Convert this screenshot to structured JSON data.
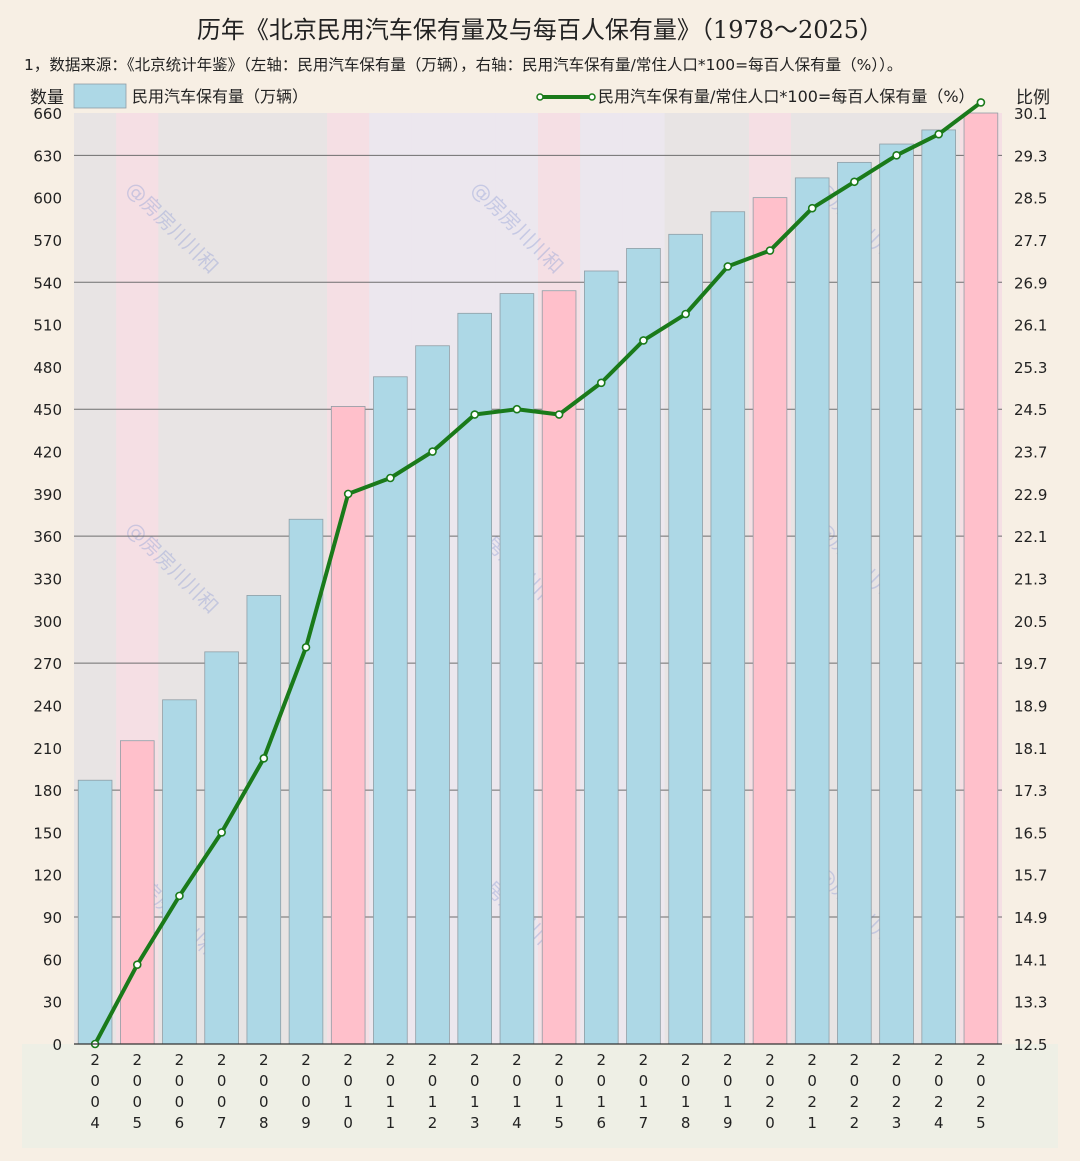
{
  "title": "历年《北京民用汽车保有量及与每百人保有量》（1978～2025）",
  "subtitle": "1，数据来源：《北京统计年鉴》（左轴：民用汽车保有量（万辆），右轴：民用汽车保有量/常住人口*100=每百人保有量（%））。",
  "watermark": "@房房川川和",
  "colors": {
    "bar_blue": "#add8e6",
    "bar_pink": "#ffc0cb",
    "line": "#1a7a1a",
    "band_pink": "#f7dde3",
    "band_grey": "#e8e3e3",
    "band_lavender": "#ece6ee"
  },
  "chart_data": {
    "type": "bar",
    "categories": [
      "2004",
      "2005",
      "2006",
      "2007",
      "2008",
      "2009",
      "2010",
      "2011",
      "2012",
      "2013",
      "2014",
      "2015",
      "2016",
      "2017",
      "2018",
      "2019",
      "2020",
      "2021",
      "2022",
      "2023",
      "2024",
      "2025"
    ],
    "y_left_label": "数量",
    "y_right_label": "比例",
    "y_left_ticks": [
      "0",
      "30",
      "60",
      "90",
      "120",
      "150",
      "180",
      "210",
      "240",
      "270",
      "300",
      "330",
      "360",
      "390",
      "420",
      "450",
      "480",
      "510",
      "540",
      "570",
      "600",
      "630",
      "660"
    ],
    "y_right_ticks": [
      "12.5",
      "13.3",
      "14.1",
      "14.9",
      "15.7",
      "16.5",
      "17.3",
      "18.1",
      "18.9",
      "19.7",
      "20.5",
      "21.3",
      "22.1",
      "22.9",
      "23.7",
      "24.5",
      "25.3",
      "26.1",
      "26.9",
      "27.7",
      "28.5",
      "29.3",
      "30.1"
    ],
    "ylim_left": [
      0,
      660
    ],
    "ylim_right": [
      12.5,
      30.1
    ],
    "series": [
      {
        "name": "民用汽车保有量（万辆）",
        "type": "bar",
        "axis": "left",
        "values": [
          187,
          215,
          244,
          278,
          318,
          372,
          452,
          473,
          495,
          518,
          532,
          534,
          548,
          564,
          574,
          590,
          600,
          614,
          625,
          638,
          648,
          660
        ],
        "highlight": [
          false,
          true,
          false,
          false,
          false,
          false,
          true,
          false,
          false,
          false,
          false,
          true,
          false,
          false,
          false,
          false,
          true,
          false,
          false,
          false,
          false,
          true
        ]
      },
      {
        "name": "民用汽车保有量/常住人口*100=每百人保有量（%）",
        "type": "line",
        "axis": "right",
        "values": [
          12.5,
          14.0,
          15.3,
          16.5,
          17.9,
          20.0,
          22.9,
          23.2,
          23.7,
          24.4,
          24.5,
          24.4,
          25.0,
          25.8,
          26.3,
          27.2,
          27.5,
          28.3,
          28.8,
          29.3,
          29.7,
          30.3
        ]
      }
    ],
    "grid": true,
    "legend_position": "top"
  }
}
